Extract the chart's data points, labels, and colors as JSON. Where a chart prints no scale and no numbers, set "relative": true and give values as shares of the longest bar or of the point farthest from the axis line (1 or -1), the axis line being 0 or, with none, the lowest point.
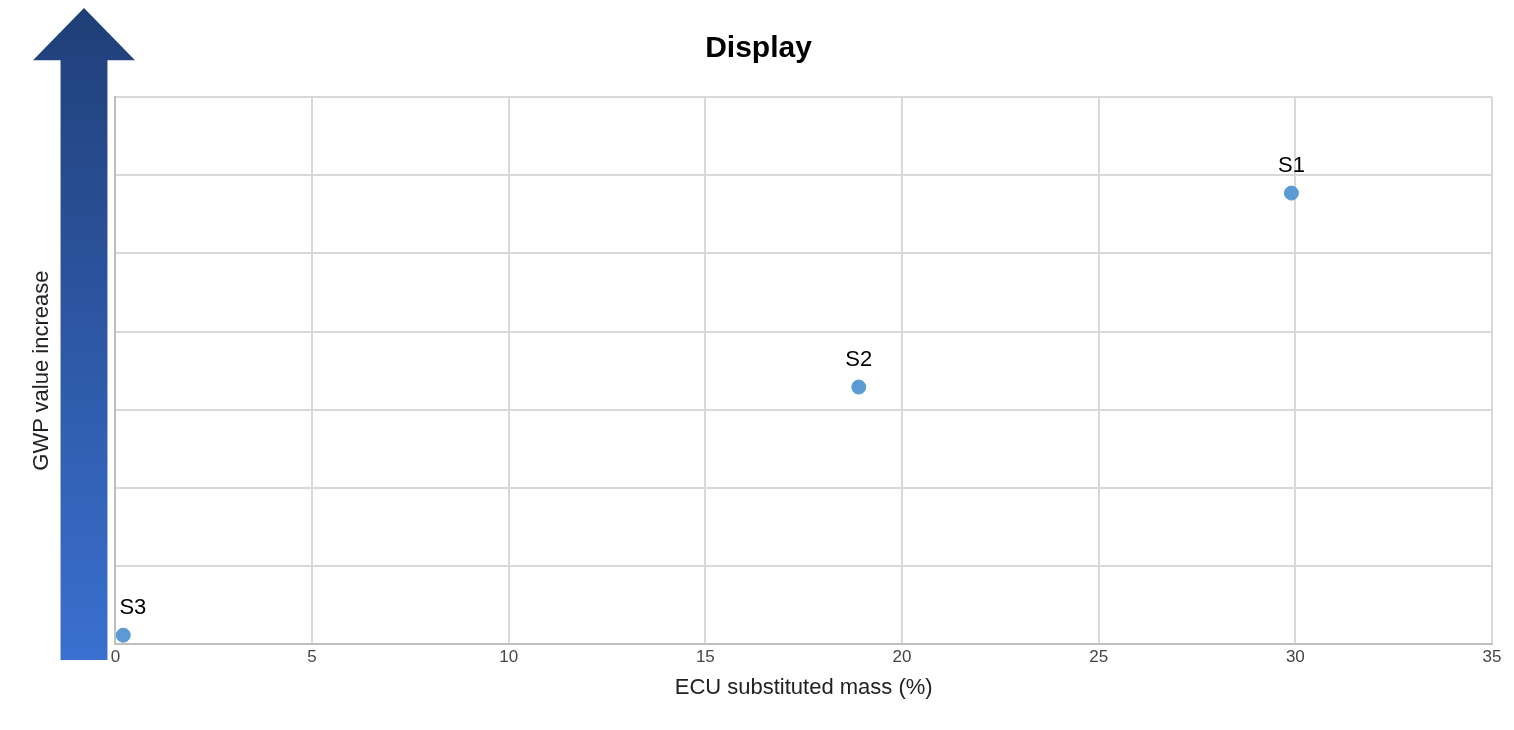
{
  "chart_data": {
    "type": "scatter",
    "title": "Display",
    "xlabel": "ECU substituted mass (%)",
    "ylabel": "GWP value increase",
    "x": [
      29.9,
      18.9,
      0.2
    ],
    "series": [
      {
        "color": "#5b9bd5",
        "values": [
          1,
          0.57,
          0.02
        ]
      }
    ],
    "relative": true,
    "xlim": [
      0,
      35
    ],
    "xticks": [
      0,
      5,
      10,
      15,
      20,
      25,
      30,
      35
    ],
    "annotations": [
      {
        "text": "S1",
        "x": 29.9,
        "y": 1
      },
      {
        "text": "S2",
        "x": 18.9,
        "y": 0.57
      },
      {
        "text": "S3",
        "x": 0.2,
        "y": 0.02
      }
    ],
    "grid": true,
    "marker": "circle",
    "legend": false
  }
}
